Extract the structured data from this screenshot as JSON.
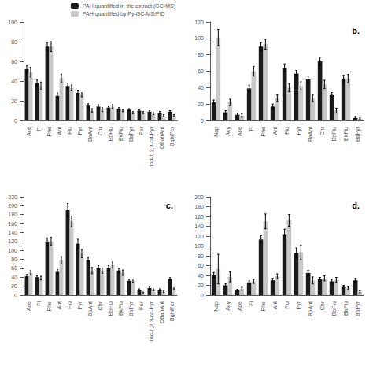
{
  "chart_data": [
    {
      "type": "bar",
      "categories": [
        "Ace",
        "Fl",
        "Phe",
        "Ant",
        "Flu",
        "Pyr",
        "BaAnt",
        "Chr",
        "BbFlu",
        "BkFlu",
        "BaPyr",
        "Per",
        "Ind-1,2,3-cd-Pyr",
        "DBahAnt",
        "BghiPer"
      ],
      "series": [
        {
          "name": "PAH quantified in the extract (GC-MS)",
          "color": "#1a1a1a",
          "values": [
            52,
            38,
            75,
            25,
            35,
            28,
            15,
            14,
            13,
            12,
            11,
            10,
            9,
            8,
            9
          ],
          "errors": [
            4,
            3,
            4,
            3,
            3,
            2,
            2,
            2,
            1,
            1,
            1,
            1,
            1,
            1,
            1
          ]
        },
        {
          "name": "PAH quantified by Py-GC-MS/FID",
          "color": "#c8c8c8",
          "values": [
            49,
            35,
            75,
            43,
            33,
            26,
            10,
            11,
            14,
            10,
            8,
            8,
            7,
            5,
            5
          ],
          "errors": [
            5,
            4,
            5,
            4,
            3,
            2,
            2,
            2,
            2,
            1,
            1,
            1,
            1,
            1,
            1
          ]
        }
      ],
      "ylim": [
        0,
        100
      ],
      "yticks": [
        0,
        20,
        40,
        60,
        80,
        100
      ],
      "grid": false,
      "legend": "upper right"
    },
    {
      "type": "bar",
      "annotations": [
        "b."
      ],
      "categories": [
        "Nap",
        "Acy",
        "Ace",
        "Fl",
        "Phe",
        "Ant",
        "Flu",
        "Pyr",
        "BaAnt",
        "Chr",
        "BbFlu",
        "BkFlu",
        "BaPyr"
      ],
      "series": [
        {
          "color": "#1a1a1a",
          "values": [
            22,
            10,
            7,
            39,
            90,
            17,
            64,
            57,
            50,
            72,
            31,
            51,
            3
          ],
          "errors": [
            3,
            2,
            2,
            4,
            5,
            3,
            5,
            4,
            4,
            5,
            3,
            4,
            1
          ]
        },
        {
          "color": "#c8c8c8",
          "values": [
            101,
            22,
            6,
            60,
            93,
            27,
            40,
            42,
            27,
            44,
            12,
            51,
            2
          ],
          "errors": [
            10,
            4,
            2,
            6,
            6,
            4,
            5,
            5,
            4,
            5,
            3,
            5,
            1
          ]
        }
      ],
      "ylim": [
        0,
        120
      ],
      "yticks": [
        0,
        20,
        40,
        60,
        80,
        100,
        120
      ],
      "grid": false
    },
    {
      "type": "bar",
      "annotations": [
        "c."
      ],
      "categories": [
        "Ace",
        "Fl",
        "Phe",
        "Ant",
        "Flu",
        "Pyr",
        "BaAnt",
        "Chr",
        "BbFlu",
        "BkFlu",
        "BaPyr",
        "Per",
        "Ind-1,2,3-cd-Pyr",
        "DBahAnt",
        "BghiPer"
      ],
      "series": [
        {
          "color": "#1a1a1a",
          "values": [
            42,
            40,
            120,
            52,
            190,
            115,
            78,
            60,
            60,
            55,
            32,
            12,
            16,
            12,
            36
          ],
          "errors": [
            4,
            3,
            8,
            5,
            15,
            10,
            7,
            6,
            6,
            5,
            3,
            2,
            2,
            2,
            3
          ]
        },
        {
          "color": "#c8c8c8",
          "values": [
            50,
            38,
            120,
            78,
            165,
            93,
            55,
            55,
            67,
            50,
            32,
            5,
            12,
            8,
            14
          ],
          "errors": [
            5,
            4,
            9,
            8,
            12,
            9,
            7,
            6,
            7,
            6,
            4,
            2,
            2,
            2,
            2
          ]
        }
      ],
      "ylim": [
        0,
        220
      ],
      "yticks": [
        0,
        20,
        40,
        60,
        80,
        100,
        120,
        140,
        160,
        180,
        200,
        220
      ],
      "grid": false
    },
    {
      "type": "bar",
      "annotations": [
        "d."
      ],
      "categories": [
        "Nap",
        "Acy",
        "Ace",
        "Fl",
        "Phe",
        "Ant",
        "Flu",
        "Pyr",
        "BaAnt",
        "Chr",
        "BbFlu",
        "BkFlu",
        "BaPyr"
      ],
      "series": [
        {
          "color": "#1a1a1a",
          "values": [
            41,
            20,
            10,
            26,
            113,
            30,
            124,
            86,
            45,
            32,
            28,
            17,
            30
          ],
          "errors": [
            5,
            3,
            2,
            3,
            8,
            4,
            10,
            10,
            5,
            4,
            4,
            3,
            4
          ]
        },
        {
          "color": "#c8c8c8",
          "values": [
            53,
            37,
            13,
            28,
            150,
            38,
            152,
            87,
            30,
            34,
            31,
            14,
            7
          ],
          "errors": [
            30,
            10,
            3,
            4,
            15,
            5,
            12,
            15,
            7,
            5,
            5,
            3,
            2
          ]
        }
      ],
      "ylim": [
        0,
        200
      ],
      "yticks": [
        0,
        20,
        40,
        60,
        80,
        100,
        120,
        140,
        160,
        180,
        200
      ],
      "grid": false
    }
  ]
}
